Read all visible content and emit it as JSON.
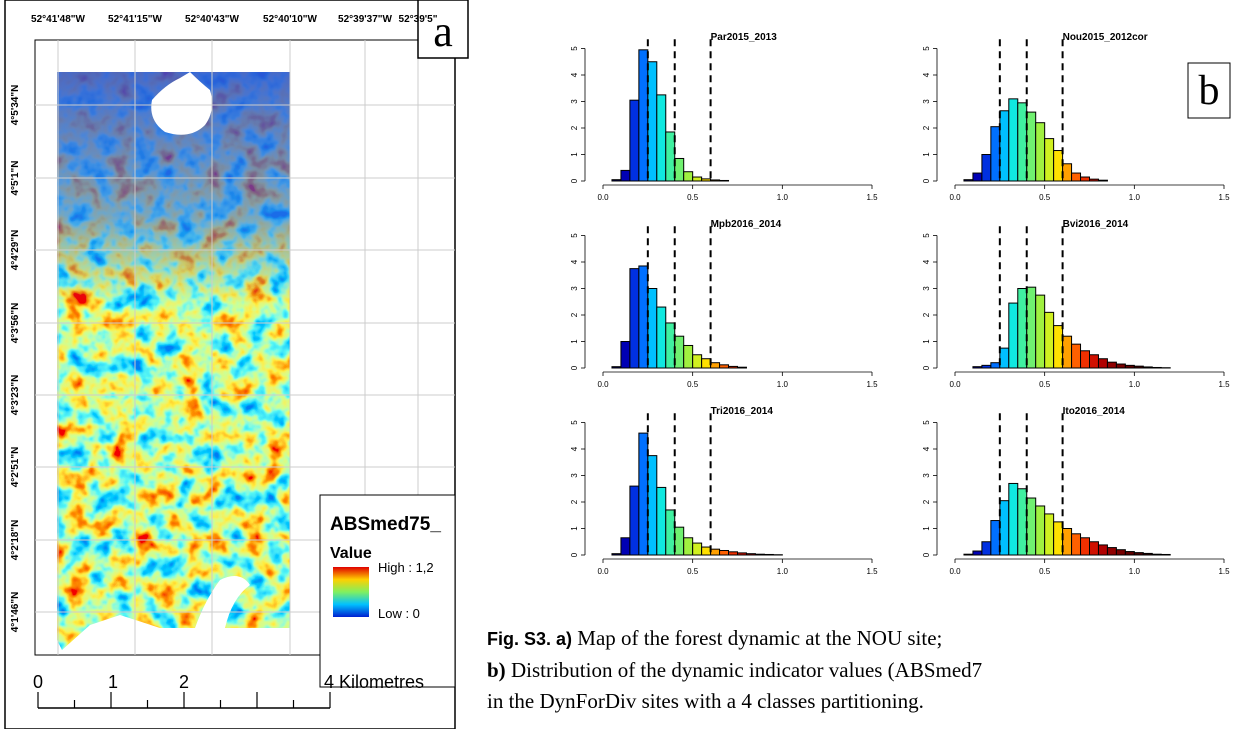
{
  "chart_data": [
    {
      "type": "histogram",
      "title": "Par2015_2013",
      "bins": [
        0.05,
        0.1,
        0.15,
        0.2,
        0.25,
        0.3,
        0.35,
        0.4,
        0.45,
        0.5,
        0.55,
        0.6,
        0.65,
        0.7
      ],
      "counts": [
        0.05,
        0.4,
        3.05,
        4.95,
        4.5,
        3.25,
        1.85,
        0.85,
        0.35,
        0.15,
        0.08,
        0.04,
        0.02
      ],
      "colors": [
        "#00006e",
        "#0000b4",
        "#0030e0",
        "#0070ff",
        "#00c0ff",
        "#10e8e0",
        "#40f0a0",
        "#70f070",
        "#a0f040",
        "#d0f020",
        "#ffe000",
        "#ffa000",
        "#ff6000"
      ],
      "vlines": [
        0.25,
        0.4,
        0.6
      ],
      "xlim": [
        0,
        1.5
      ],
      "xticks": [
        {
          "value": 0,
          "label": "0.0"
        },
        {
          "value": 0.5,
          "label": "0.5"
        },
        {
          "value": 1,
          "label": "1.0"
        },
        {
          "value": 1.5,
          "label": "1.5"
        }
      ],
      "ylim": [
        0,
        5.2
      ],
      "yticks": [
        0,
        1,
        2,
        3,
        4,
        5
      ]
    },
    {
      "type": "histogram",
      "title": "Nou2015_2012cor",
      "bins": [
        0.05,
        0.1,
        0.15,
        0.2,
        0.25,
        0.3,
        0.35,
        0.4,
        0.45,
        0.5,
        0.55,
        0.6,
        0.65,
        0.7,
        0.75,
        0.8,
        0.85
      ],
      "counts": [
        0.05,
        0.3,
        1.0,
        2.05,
        2.65,
        3.1,
        2.95,
        2.6,
        2.2,
        1.6,
        1.15,
        0.65,
        0.3,
        0.15,
        0.07,
        0.03
      ],
      "colors": [
        "#00006e",
        "#0000b4",
        "#0030e0",
        "#0070ff",
        "#00c0ff",
        "#10e8e0",
        "#40f0a0",
        "#70f070",
        "#a0f040",
        "#d0f020",
        "#ffe000",
        "#ffa000",
        "#ff6000",
        "#f03000",
        "#d01000",
        "#b00000"
      ],
      "vlines": [
        0.25,
        0.4,
        0.6
      ],
      "xlim": [
        0,
        1.5
      ],
      "xticks": [
        {
          "value": 0,
          "label": "0.0"
        },
        {
          "value": 0.5,
          "label": "0.5"
        },
        {
          "value": 1,
          "label": "1.0"
        },
        {
          "value": 1.5,
          "label": "1.5"
        }
      ],
      "ylim": [
        0,
        5.2
      ],
      "yticks": [
        0,
        1,
        2,
        3,
        4,
        5
      ]
    },
    {
      "type": "histogram",
      "title": "Mpb2016_2014",
      "bins": [
        0.05,
        0.1,
        0.15,
        0.2,
        0.25,
        0.3,
        0.35,
        0.4,
        0.45,
        0.5,
        0.55,
        0.6,
        0.65,
        0.7,
        0.75,
        0.8
      ],
      "counts": [
        0.05,
        1.0,
        3.75,
        3.85,
        3.0,
        2.3,
        1.7,
        1.2,
        0.85,
        0.5,
        0.35,
        0.2,
        0.12,
        0.06,
        0.03
      ],
      "colors": [
        "#00006e",
        "#0000b4",
        "#0030e0",
        "#0070ff",
        "#00c0ff",
        "#10e8e0",
        "#40f0a0",
        "#70f070",
        "#a0f040",
        "#d0f020",
        "#ffe000",
        "#ffa000",
        "#ff6000",
        "#f03000",
        "#d01000"
      ],
      "vlines": [
        0.25,
        0.4,
        0.6
      ],
      "xlim": [
        0,
        1.5
      ],
      "xticks": [
        {
          "value": 0,
          "label": "0.0"
        },
        {
          "value": 0.5,
          "label": "0.5"
        },
        {
          "value": 1,
          "label": "1.0"
        },
        {
          "value": 1.5,
          "label": "1.5"
        }
      ],
      "ylim": [
        0,
        5.2
      ],
      "yticks": [
        0,
        1,
        2,
        3,
        4,
        5
      ]
    },
    {
      "type": "histogram",
      "title": "Bvi2016_2014",
      "bins": [
        0.1,
        0.15,
        0.2,
        0.25,
        0.3,
        0.35,
        0.4,
        0.45,
        0.5,
        0.55,
        0.6,
        0.65,
        0.7,
        0.75,
        0.8,
        0.85,
        0.9,
        0.95,
        1.0,
        1.05,
        1.1,
        1.15,
        1.2
      ],
      "counts": [
        0.05,
        0.1,
        0.2,
        0.75,
        2.45,
        3.0,
        3.05,
        2.75,
        2.1,
        1.6,
        1.2,
        0.9,
        0.65,
        0.5,
        0.35,
        0.22,
        0.15,
        0.1,
        0.07,
        0.04,
        0.02,
        0.01
      ],
      "colors": [
        "#0000b4",
        "#0030e0",
        "#0070ff",
        "#00c0ff",
        "#10e8e0",
        "#40f0a0",
        "#70f070",
        "#a0f040",
        "#d0f020",
        "#ffe000",
        "#ffa000",
        "#ff6000",
        "#f03000",
        "#d01000",
        "#b00000",
        "#900000",
        "#780000",
        "#600000",
        "#480000",
        "#300000",
        "#200000",
        "#100000"
      ],
      "vlines": [
        0.25,
        0.4,
        0.6
      ],
      "xlim": [
        0,
        1.5
      ],
      "xticks": [
        {
          "value": 0,
          "label": "0.0"
        },
        {
          "value": 0.5,
          "label": "0.5"
        },
        {
          "value": 1,
          "label": "1.0"
        },
        {
          "value": 1.5,
          "label": "1.5"
        }
      ],
      "ylim": [
        0,
        5.2
      ],
      "yticks": [
        0,
        1,
        2,
        3,
        4,
        5
      ]
    },
    {
      "type": "histogram",
      "title": "Tri2016_2014",
      "bins": [
        0.05,
        0.1,
        0.15,
        0.2,
        0.25,
        0.3,
        0.35,
        0.4,
        0.45,
        0.5,
        0.55,
        0.6,
        0.65,
        0.7,
        0.75,
        0.8,
        0.85,
        0.9,
        0.95,
        1.0
      ],
      "counts": [
        0.05,
        0.65,
        2.6,
        4.6,
        3.75,
        2.55,
        1.7,
        1.05,
        0.65,
        0.45,
        0.3,
        0.22,
        0.17,
        0.12,
        0.08,
        0.05,
        0.03,
        0.02,
        0.01
      ],
      "colors": [
        "#00006e",
        "#0000b4",
        "#0030e0",
        "#0070ff",
        "#00c0ff",
        "#10e8e0",
        "#40f0a0",
        "#70f070",
        "#a0f040",
        "#d0f020",
        "#ffe000",
        "#ffa000",
        "#ff6000",
        "#f03000",
        "#d01000",
        "#b00000",
        "#900000",
        "#780000",
        "#600000"
      ],
      "vlines": [
        0.25,
        0.4,
        0.6
      ],
      "xlim": [
        0,
        1.5
      ],
      "xticks": [
        {
          "value": 0,
          "label": "0.0"
        },
        {
          "value": 0.5,
          "label": "0.5"
        },
        {
          "value": 1,
          "label": "1.0"
        },
        {
          "value": 1.5,
          "label": "1.5"
        }
      ],
      "ylim": [
        0,
        5.2
      ],
      "yticks": [
        0,
        1,
        2,
        3,
        4,
        5
      ]
    },
    {
      "type": "histogram",
      "title": "Ito2016_2014",
      "bins": [
        0.05,
        0.1,
        0.15,
        0.2,
        0.25,
        0.3,
        0.35,
        0.4,
        0.45,
        0.5,
        0.55,
        0.6,
        0.65,
        0.7,
        0.75,
        0.8,
        0.85,
        0.9,
        0.95,
        1.0,
        1.05,
        1.1,
        1.15,
        1.2
      ],
      "counts": [
        0.03,
        0.15,
        0.5,
        1.3,
        2.05,
        2.7,
        2.5,
        2.15,
        1.85,
        1.55,
        1.25,
        1.0,
        0.8,
        0.65,
        0.5,
        0.38,
        0.28,
        0.2,
        0.13,
        0.09,
        0.06,
        0.03,
        0.02
      ],
      "colors": [
        "#00006e",
        "#0000b4",
        "#0030e0",
        "#0070ff",
        "#00c0ff",
        "#10e8e0",
        "#40f0a0",
        "#70f070",
        "#a0f040",
        "#d0f020",
        "#ffe000",
        "#ffa000",
        "#ff6000",
        "#f03000",
        "#d01000",
        "#b00000",
        "#900000",
        "#780000",
        "#600000",
        "#480000",
        "#300000",
        "#200000",
        "#100000"
      ],
      "vlines": [
        0.25,
        0.4,
        0.6
      ],
      "xlim": [
        0,
        1.5
      ],
      "xticks": [
        {
          "value": 0,
          "label": "0.0"
        },
        {
          "value": 0.5,
          "label": "0.5"
        },
        {
          "value": 1,
          "label": "1.0"
        },
        {
          "value": 1.5,
          "label": "1.5"
        }
      ],
      "ylim": [
        0,
        5.2
      ],
      "yticks": [
        0,
        1,
        2,
        3,
        4,
        5
      ]
    }
  ],
  "map": {
    "panel_label": "a",
    "longitudes": [
      "52°41'48\"W",
      "52°41'15\"W",
      "52°40'43\"W",
      "52°40'10\"W",
      "52°39'37\"W",
      "52°39'5\""
    ],
    "latitudes": [
      "4°5'34\"N",
      "4°5'1\"N",
      "4°4'29\"N",
      "4°3'56\"N",
      "4°3'23\"N",
      "4°2'51\"N",
      "4°2'18\"N",
      "4°1'46\"N"
    ],
    "legend": {
      "title": "ABSmed75_",
      "subtitle": "Value",
      "high": "High : 1,2",
      "low": "Low : 0"
    },
    "scale": {
      "labels": [
        "0",
        "1",
        "2",
        "4 Kilometres"
      ]
    }
  },
  "panel_b_label": "b",
  "caption": [
    {
      "bold": "Fig. S3. a)",
      "text": " Map of the forest dynamic at the NOU site;"
    },
    {
      "bold": "b)",
      "text": " Distribution of the dynamic indicator values (ABSmed7"
    },
    {
      "text": "in the DynForDiv sites with a 4 classes partitioning."
    }
  ]
}
